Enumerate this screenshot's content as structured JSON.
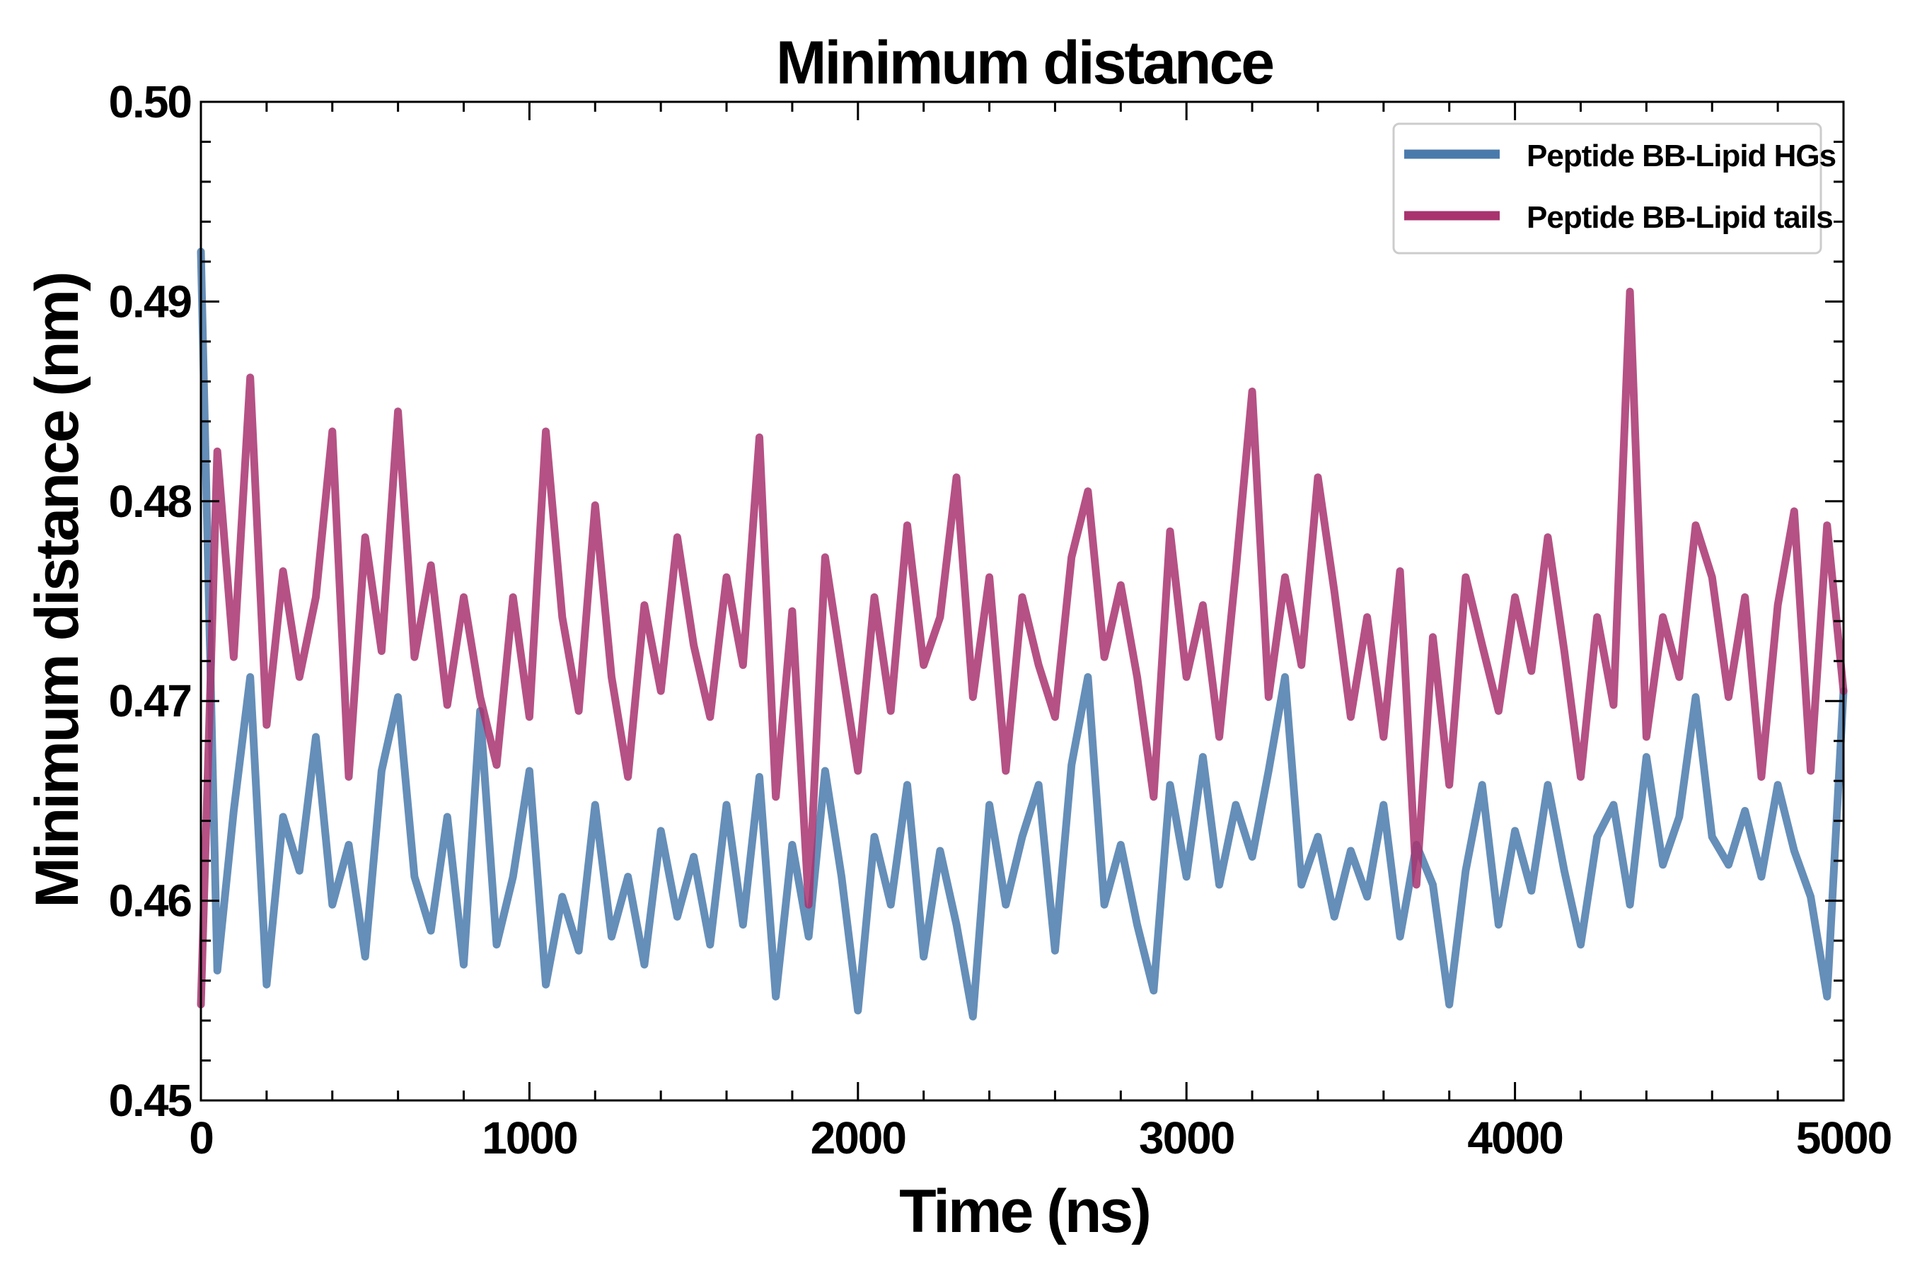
{
  "chart_data": {
    "type": "line",
    "title": "Minimum distance",
    "xlabel": "Time (ns)",
    "ylabel": "Minimum distance (nm)",
    "xlim": [
      0,
      5000
    ],
    "ylim": [
      0.45,
      0.5
    ],
    "x_ticks": [
      "0",
      "1000",
      "2000",
      "3000",
      "4000",
      "5000"
    ],
    "y_ticks": [
      "0.45",
      "0.46",
      "0.47",
      "0.48",
      "0.49",
      "0.50"
    ],
    "x_tick_values": [
      0,
      1000,
      2000,
      3000,
      4000,
      5000
    ],
    "y_tick_values": [
      0.45,
      0.46,
      0.47,
      0.48,
      0.49,
      0.5
    ],
    "grid": false,
    "legend_position": "top-right",
    "series": [
      {
        "name": "Peptide BB-Lipid HGs",
        "color": "#4a7aab",
        "x": [
          0,
          50,
          100,
          150,
          200,
          250,
          300,
          350,
          400,
          450,
          500,
          550,
          600,
          650,
          700,
          750,
          800,
          850,
          900,
          950,
          1000,
          1050,
          1100,
          1150,
          1200,
          1250,
          1300,
          1350,
          1400,
          1450,
          1500,
          1550,
          1600,
          1650,
          1700,
          1750,
          1800,
          1850,
          1900,
          1950,
          2000,
          2050,
          2100,
          2150,
          2200,
          2250,
          2300,
          2350,
          2400,
          2450,
          2500,
          2550,
          2600,
          2650,
          2700,
          2750,
          2800,
          2850,
          2900,
          2950,
          3000,
          3050,
          3100,
          3150,
          3200,
          3250,
          3300,
          3350,
          3400,
          3450,
          3500,
          3550,
          3600,
          3650,
          3700,
          3750,
          3800,
          3850,
          3900,
          3950,
          4000,
          4050,
          4100,
          4150,
          4200,
          4250,
          4300,
          4350,
          4400,
          4450,
          4500,
          4550,
          4600,
          4650,
          4700,
          4750,
          4800,
          4850,
          4900,
          4950,
          5000
        ],
        "values": [
          0.4925,
          0.4565,
          0.4645,
          0.4712,
          0.4558,
          0.4642,
          0.4615,
          0.4682,
          0.4598,
          0.4628,
          0.4572,
          0.4665,
          0.4702,
          0.4612,
          0.4585,
          0.4642,
          0.4568,
          0.4695,
          0.4578,
          0.4612,
          0.4665,
          0.4558,
          0.4602,
          0.4575,
          0.4648,
          0.4582,
          0.4612,
          0.4568,
          0.4635,
          0.4592,
          0.4622,
          0.4578,
          0.4648,
          0.4588,
          0.4662,
          0.4552,
          0.4628,
          0.4582,
          0.4665,
          0.4612,
          0.4545,
          0.4632,
          0.4598,
          0.4658,
          0.4572,
          0.4625,
          0.4588,
          0.4542,
          0.4648,
          0.4598,
          0.4632,
          0.4658,
          0.4575,
          0.4668,
          0.4712,
          0.4598,
          0.4628,
          0.4588,
          0.4555,
          0.4658,
          0.4612,
          0.4672,
          0.4608,
          0.4648,
          0.4622,
          0.4665,
          0.4712,
          0.4608,
          0.4632,
          0.4592,
          0.4625,
          0.4602,
          0.4648,
          0.4582,
          0.4628,
          0.4608,
          0.4548,
          0.4615,
          0.4658,
          0.4588,
          0.4635,
          0.4605,
          0.4658,
          0.4615,
          0.4578,
          0.4632,
          0.4648,
          0.4598,
          0.4672,
          0.4618,
          0.4642,
          0.4702,
          0.4632,
          0.4618,
          0.4645,
          0.4612,
          0.4658,
          0.4625,
          0.4602,
          0.4552,
          0.4705
        ]
      },
      {
        "name": "Peptide BB-Lipid tails",
        "color": "#a8336f",
        "x": [
          0,
          50,
          100,
          150,
          200,
          250,
          300,
          350,
          400,
          450,
          500,
          550,
          600,
          650,
          700,
          750,
          800,
          850,
          900,
          950,
          1000,
          1050,
          1100,
          1150,
          1200,
          1250,
          1300,
          1350,
          1400,
          1450,
          1500,
          1550,
          1600,
          1650,
          1700,
          1750,
          1800,
          1850,
          1900,
          1950,
          2000,
          2050,
          2100,
          2150,
          2200,
          2250,
          2300,
          2350,
          2400,
          2450,
          2500,
          2550,
          2600,
          2650,
          2700,
          2750,
          2800,
          2850,
          2900,
          2950,
          3000,
          3050,
          3100,
          3150,
          3200,
          3250,
          3300,
          3350,
          3400,
          3450,
          3500,
          3550,
          3600,
          3650,
          3700,
          3750,
          3800,
          3850,
          3900,
          3950,
          4000,
          4050,
          4100,
          4150,
          4200,
          4250,
          4300,
          4350,
          4400,
          4450,
          4500,
          4550,
          4600,
          4650,
          4700,
          4750,
          4800,
          4850,
          4900,
          4950,
          5000
        ],
        "values": [
          0.4548,
          0.4825,
          0.4722,
          0.4862,
          0.4688,
          0.4765,
          0.4712,
          0.4752,
          0.4835,
          0.4662,
          0.4782,
          0.4725,
          0.4845,
          0.4722,
          0.4768,
          0.4698,
          0.4752,
          0.4702,
          0.4668,
          0.4752,
          0.4692,
          0.4835,
          0.4742,
          0.4695,
          0.4798,
          0.4712,
          0.4662,
          0.4748,
          0.4705,
          0.4782,
          0.4728,
          0.4692,
          0.4762,
          0.4718,
          0.4832,
          0.4652,
          0.4745,
          0.4598,
          0.4772,
          0.4718,
          0.4665,
          0.4752,
          0.4695,
          0.4788,
          0.4718,
          0.4742,
          0.4812,
          0.4702,
          0.4762,
          0.4665,
          0.4752,
          0.4718,
          0.4692,
          0.4772,
          0.4805,
          0.4722,
          0.4758,
          0.4712,
          0.4652,
          0.4785,
          0.4712,
          0.4748,
          0.4682,
          0.4765,
          0.4855,
          0.4702,
          0.4762,
          0.4718,
          0.4812,
          0.4755,
          0.4692,
          0.4742,
          0.4682,
          0.4765,
          0.4608,
          0.4732,
          0.4658,
          0.4762,
          0.4728,
          0.4695,
          0.4752,
          0.4715,
          0.4782,
          0.4725,
          0.4662,
          0.4742,
          0.4698,
          0.4905,
          0.4682,
          0.4742,
          0.4712,
          0.4788,
          0.4762,
          0.4702,
          0.4752,
          0.4662,
          0.4748,
          0.4795,
          0.4665,
          0.4788,
          0.4705
        ]
      }
    ]
  }
}
